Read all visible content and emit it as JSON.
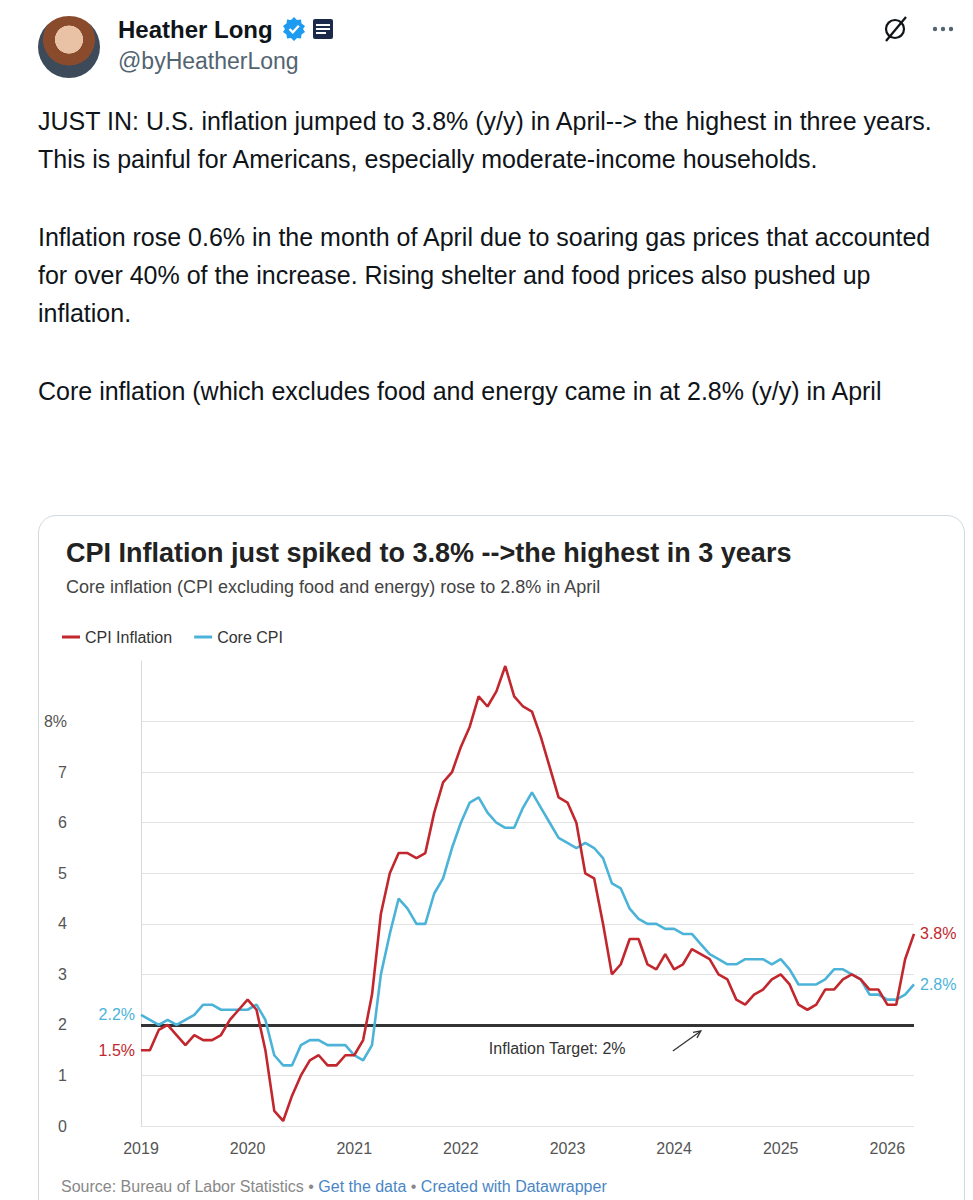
{
  "header": {
    "name": "Heather Long",
    "handle": "@byHeatherLong"
  },
  "tweet": {
    "paragraphs": [
      "JUST IN: U.S. inflation jumped to 3.8% (y/y) in April--> the highest in three years. This is painful for Americans, especially moderate-income households.",
      "Inflation rose 0.6% in the month of April due to soaring gas prices that accounted for over 40% of the increase. Rising shelter and food prices also pushed up inflation.",
      "Core inflation (which excludes food and energy came in at 2.8% (y/y) in April"
    ]
  },
  "chart_data": {
    "type": "line",
    "title": "CPI Inflation just spiked to 3.8% -->the highest in 3 years",
    "subtitle": "Core inflation (CPI excluding food and energy) rose to 2.8% in April",
    "legend": "top-left",
    "grid": true,
    "ylim": [
      0,
      9.2
    ],
    "yticks": [
      0,
      1,
      2,
      3,
      4,
      5,
      6,
      7,
      {
        "value": 8,
        "label": "8%"
      }
    ],
    "reference_line": {
      "y": 2,
      "label": "Inflation Target: 2%"
    },
    "categories": [
      "2019",
      null,
      null,
      null,
      null,
      null,
      null,
      null,
      null,
      null,
      null,
      null,
      "2020",
      null,
      null,
      null,
      null,
      null,
      null,
      null,
      null,
      null,
      null,
      null,
      "2021",
      null,
      null,
      null,
      null,
      null,
      null,
      null,
      null,
      null,
      null,
      null,
      "2022",
      null,
      null,
      null,
      null,
      null,
      null,
      null,
      null,
      null,
      null,
      null,
      "2023",
      null,
      null,
      null,
      null,
      null,
      null,
      null,
      null,
      null,
      null,
      null,
      "2024",
      null,
      null,
      null,
      null,
      null,
      null,
      null,
      null,
      null,
      null,
      null,
      "2025",
      null,
      null,
      null,
      null,
      null,
      null,
      null,
      null,
      null,
      null,
      null,
      "2026",
      null,
      null,
      null
    ],
    "series": [
      {
        "name": "CPI Inflation",
        "color": "#c1272d",
        "values": [
          1.5,
          1.5,
          1.9,
          2.0,
          1.8,
          1.6,
          1.8,
          1.7,
          1.7,
          1.8,
          2.1,
          2.3,
          2.5,
          2.3,
          1.5,
          0.3,
          0.1,
          0.6,
          1.0,
          1.3,
          1.4,
          1.2,
          1.2,
          1.4,
          1.4,
          1.7,
          2.6,
          4.2,
          5.0,
          5.4,
          5.4,
          5.3,
          5.4,
          6.2,
          6.8,
          7.0,
          7.5,
          7.9,
          8.5,
          8.3,
          8.6,
          9.1,
          8.5,
          8.3,
          8.2,
          7.7,
          7.1,
          6.5,
          6.4,
          6.0,
          5.0,
          4.9,
          4.0,
          3.0,
          3.2,
          3.7,
          3.7,
          3.2,
          3.1,
          3.4,
          3.1,
          3.2,
          3.5,
          3.4,
          3.3,
          3.0,
          2.9,
          2.5,
          2.4,
          2.6,
          2.7,
          2.9,
          3.0,
          2.8,
          2.4,
          2.3,
          2.4,
          2.7,
          2.7,
          2.9,
          3.0,
          2.9,
          2.7,
          2.7,
          2.4,
          2.4,
          3.3,
          3.8
        ],
        "value_labels": [
          "1.5%",
          null,
          null,
          null,
          null,
          null,
          null,
          null,
          null,
          null,
          null,
          null,
          null,
          null,
          null,
          null,
          null,
          null,
          null,
          null,
          null,
          null,
          null,
          null,
          null,
          null,
          null,
          null,
          null,
          null,
          null,
          null,
          null,
          null,
          null,
          null,
          null,
          null,
          null,
          null,
          null,
          null,
          null,
          null,
          null,
          null,
          null,
          null,
          null,
          null,
          null,
          null,
          null,
          null,
          null,
          null,
          null,
          null,
          null,
          null,
          null,
          null,
          null,
          null,
          null,
          null,
          null,
          null,
          null,
          null,
          null,
          null,
          null,
          null,
          null,
          null,
          null,
          null,
          null,
          null,
          null,
          null,
          null,
          null,
          null,
          null,
          null,
          "3.8%"
        ]
      },
      {
        "name": "Core CPI",
        "color": "#4cb3d8",
        "values": [
          2.2,
          2.1,
          2.0,
          2.1,
          2.0,
          2.1,
          2.2,
          2.4,
          2.4,
          2.3,
          2.3,
          2.3,
          2.3,
          2.4,
          2.1,
          1.4,
          1.2,
          1.2,
          1.6,
          1.7,
          1.7,
          1.6,
          1.6,
          1.6,
          1.4,
          1.3,
          1.6,
          3.0,
          3.8,
          4.5,
          4.3,
          4.0,
          4.0,
          4.6,
          4.9,
          5.5,
          6.0,
          6.4,
          6.5,
          6.2,
          6.0,
          5.9,
          5.9,
          6.3,
          6.6,
          6.3,
          6.0,
          5.7,
          5.6,
          5.5,
          5.6,
          5.5,
          5.3,
          4.8,
          4.7,
          4.3,
          4.1,
          4.0,
          4.0,
          3.9,
          3.9,
          3.8,
          3.8,
          3.6,
          3.4,
          3.3,
          3.2,
          3.2,
          3.3,
          3.3,
          3.3,
          3.2,
          3.3,
          3.1,
          2.8,
          2.8,
          2.8,
          2.9,
          3.1,
          3.1,
          3.0,
          2.9,
          2.6,
          2.6,
          2.5,
          2.5,
          2.6,
          2.8
        ],
        "value_labels": [
          "2.2%",
          null,
          null,
          null,
          null,
          null,
          null,
          null,
          null,
          null,
          null,
          null,
          null,
          null,
          null,
          null,
          null,
          null,
          null,
          null,
          null,
          null,
          null,
          null,
          null,
          null,
          null,
          null,
          null,
          null,
          null,
          null,
          null,
          null,
          null,
          null,
          null,
          null,
          null,
          null,
          null,
          null,
          null,
          null,
          null,
          null,
          null,
          null,
          null,
          null,
          null,
          null,
          null,
          null,
          null,
          null,
          null,
          null,
          null,
          null,
          null,
          null,
          null,
          null,
          null,
          null,
          null,
          null,
          null,
          null,
          null,
          null,
          null,
          null,
          null,
          null,
          null,
          null,
          null,
          null,
          null,
          null,
          null,
          null,
          null,
          null,
          null,
          "2.8%"
        ]
      }
    ]
  },
  "footer": {
    "source": "Source: Bureau of Labor Statistics",
    "separator": "•",
    "links": [
      "Get the data",
      "Created with Datawrapper"
    ]
  }
}
